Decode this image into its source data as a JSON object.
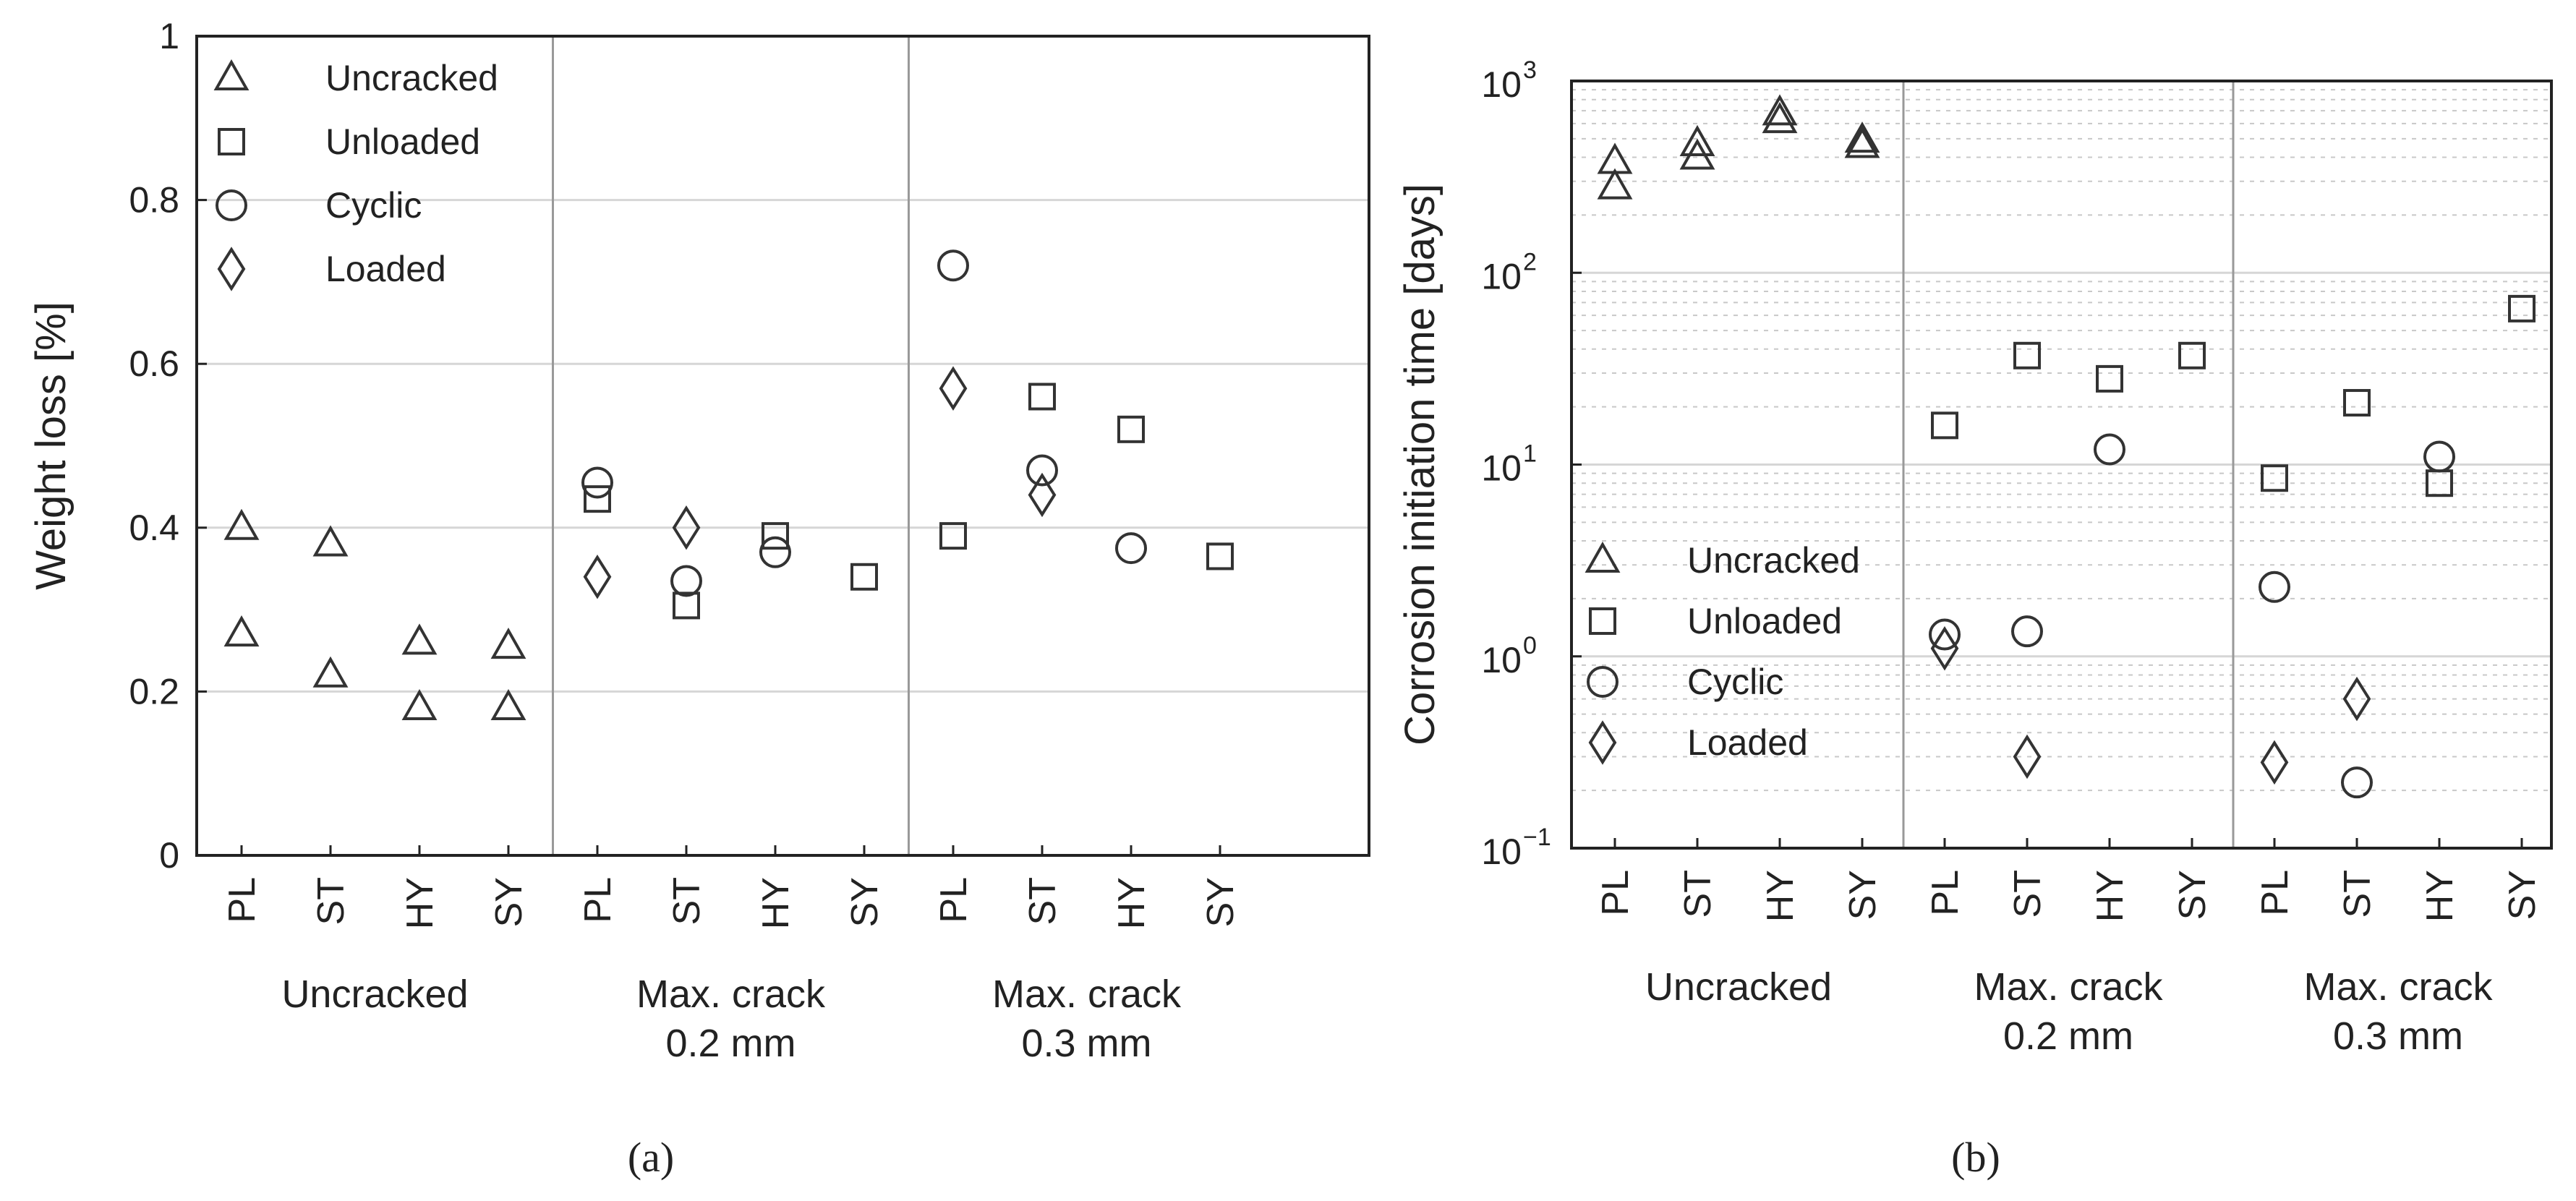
{
  "chart_data": [
    {
      "type": "scatter",
      "panel_label": "(a)",
      "ylabel": "Weight loss  [%]",
      "ylim": [
        0,
        1
      ],
      "yscale": "linear",
      "yticks": [
        0,
        0.2,
        0.4,
        0.6,
        0.8,
        1
      ],
      "ytick_labels": [
        "0",
        "0.2",
        "0.4",
        "0.6",
        "0.8",
        "1"
      ],
      "grid": true,
      "legend_position": "top-left",
      "categories": [
        "PL",
        "ST",
        "HY",
        "SY",
        "PL",
        "ST",
        "HY",
        "SY",
        "PL",
        "ST",
        "HY",
        "SY"
      ],
      "groups": [
        {
          "label_lines": [
            "Uncracked"
          ],
          "start": 0,
          "end": 3
        },
        {
          "label_lines": [
            "Max. crack",
            "0.2 mm"
          ],
          "start": 4,
          "end": 7
        },
        {
          "label_lines": [
            "Max. crack",
            "0.3 mm"
          ],
          "start": 8,
          "end": 11
        }
      ],
      "series": [
        {
          "name": "Uncracked",
          "marker": "triangle",
          "points": [
            [
              0,
              0.4
            ],
            [
              0,
              0.27
            ],
            [
              1,
              0.38
            ],
            [
              1,
              0.22
            ],
            [
              2,
              0.26
            ],
            [
              2,
              0.18
            ],
            [
              3,
              0.255
            ],
            [
              3,
              0.18
            ]
          ]
        },
        {
          "name": "Unloaded",
          "marker": "square",
          "points": [
            [
              4,
              0.435
            ],
            [
              5,
              0.305
            ],
            [
              6,
              0.39
            ],
            [
              7,
              0.34
            ],
            [
              8,
              0.39
            ],
            [
              9,
              0.56
            ],
            [
              10,
              0.52
            ],
            [
              11,
              0.365
            ]
          ]
        },
        {
          "name": "Cyclic",
          "marker": "circle",
          "points": [
            [
              4,
              0.455
            ],
            [
              5,
              0.335
            ],
            [
              6,
              0.37
            ],
            [
              8,
              0.72
            ],
            [
              9,
              0.47
            ],
            [
              10,
              0.375
            ]
          ]
        },
        {
          "name": "Loaded",
          "marker": "diamond",
          "points": [
            [
              4,
              0.34
            ],
            [
              5,
              0.4
            ],
            [
              8,
              0.57
            ],
            [
              9,
              0.44
            ]
          ]
        }
      ]
    },
    {
      "type": "scatter",
      "panel_label": "(b)",
      "ylabel": "Corrosion initiation time [days]",
      "ylim": [
        0.1,
        1000
      ],
      "yscale": "log",
      "yticks": [
        0.1,
        1,
        10,
        100,
        1000
      ],
      "ytick_labels": [
        {
          "base": "10",
          "exp": "−1"
        },
        {
          "base": "10",
          "exp": "0"
        },
        {
          "base": "10",
          "exp": "1"
        },
        {
          "base": "10",
          "exp": "2"
        },
        {
          "base": "10",
          "exp": "3"
        }
      ],
      "grid": true,
      "legend_position": "bottom-left",
      "categories": [
        "PL",
        "ST",
        "HY",
        "SY",
        "PL",
        "ST",
        "HY",
        "SY",
        "PL",
        "ST",
        "HY",
        "SY"
      ],
      "groups": [
        {
          "label_lines": [
            "Uncracked"
          ],
          "start": 0,
          "end": 3
        },
        {
          "label_lines": [
            "Max. crack",
            "0.2 mm"
          ],
          "start": 4,
          "end": 7
        },
        {
          "label_lines": [
            "Max. crack",
            "0.3 mm"
          ],
          "start": 8,
          "end": 11
        }
      ],
      "series": [
        {
          "name": "Uncracked",
          "marker": "triangle",
          "points": [
            [
              0,
              380
            ],
            [
              0,
              280
            ],
            [
              1,
              470
            ],
            [
              1,
              400
            ],
            [
              2,
              680
            ],
            [
              2,
              620
            ],
            [
              3,
              490
            ],
            [
              3,
              460
            ]
          ]
        },
        {
          "name": "Unloaded",
          "marker": "square",
          "points": [
            [
              4,
              16
            ],
            [
              5,
              37
            ],
            [
              6,
              28
            ],
            [
              7,
              37
            ],
            [
              8,
              8.5
            ],
            [
              9,
              21
            ],
            [
              10,
              8
            ],
            [
              11,
              65
            ]
          ]
        },
        {
          "name": "Cyclic",
          "marker": "circle",
          "points": [
            [
              4,
              1.3
            ],
            [
              5,
              1.35
            ],
            [
              6,
              12
            ],
            [
              8,
              2.3
            ],
            [
              9,
              0.22
            ],
            [
              10,
              11
            ]
          ]
        },
        {
          "name": "Loaded",
          "marker": "diamond",
          "points": [
            [
              4,
              1.1
            ],
            [
              5,
              0.3
            ],
            [
              8,
              0.28
            ],
            [
              9,
              0.6
            ]
          ]
        }
      ]
    }
  ]
}
